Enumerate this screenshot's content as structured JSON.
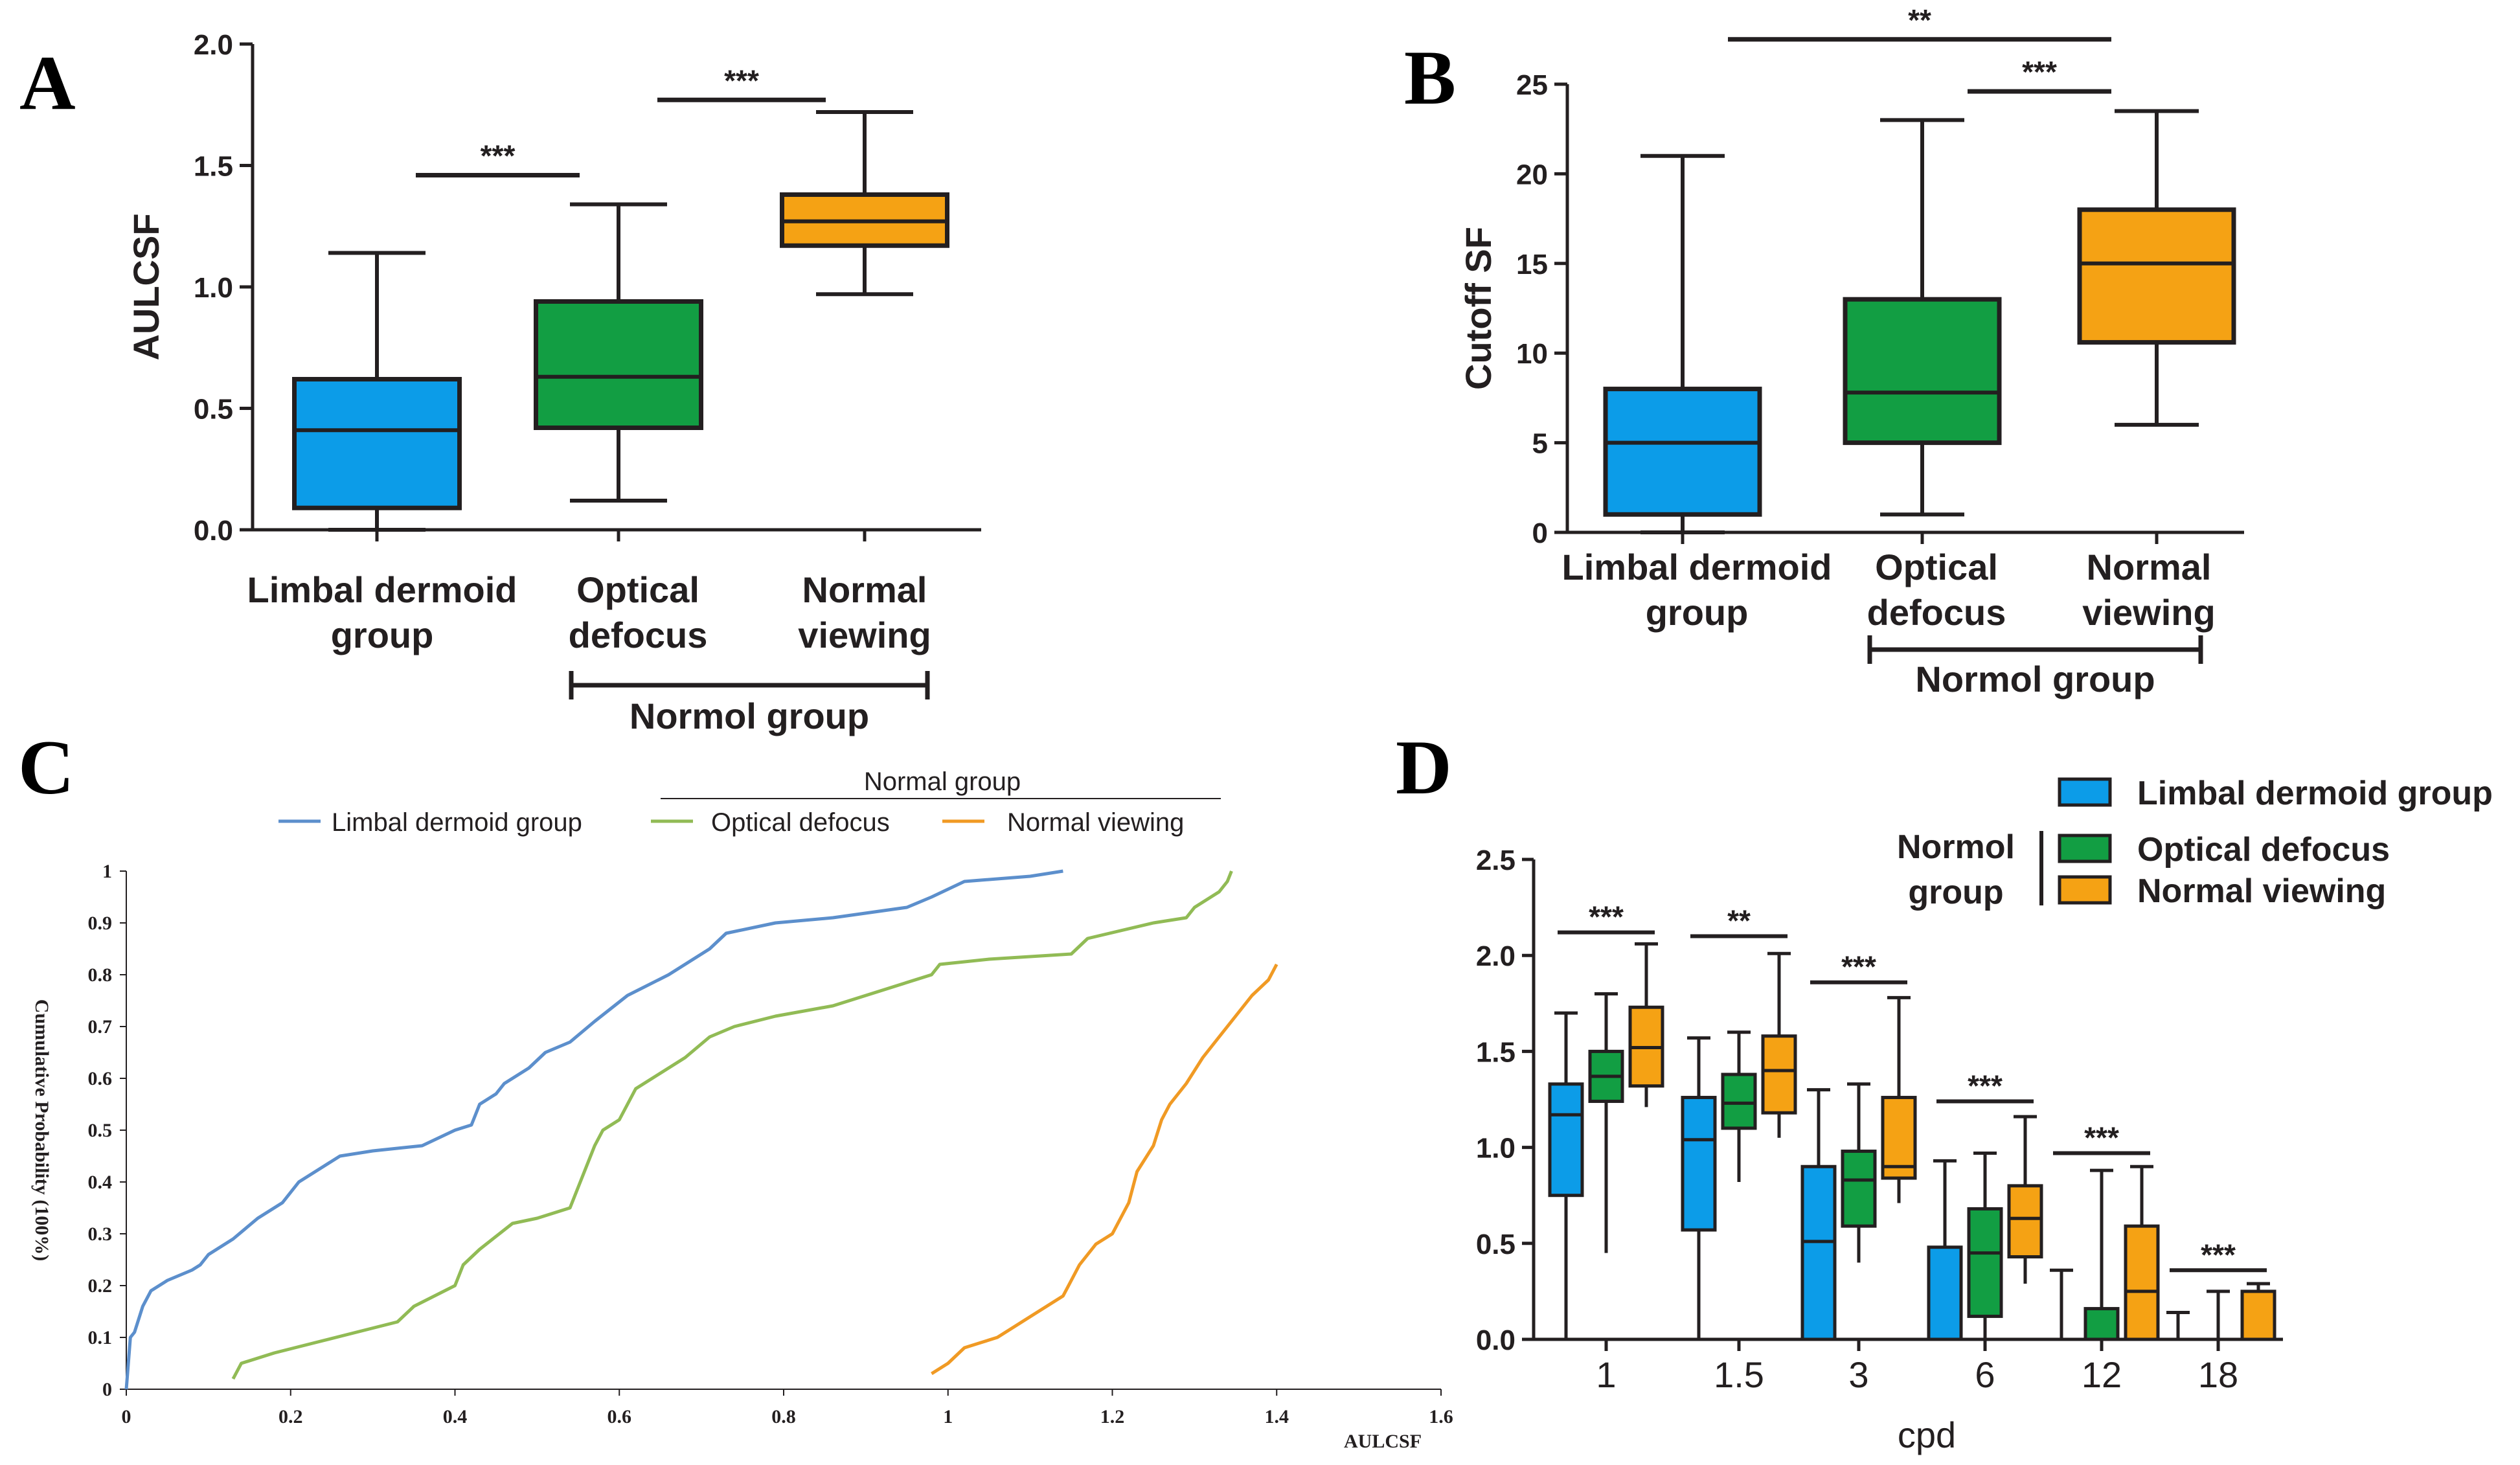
{
  "colors": {
    "blue": "#0c9ce8",
    "green": "#129e43",
    "orange": "#f5a214",
    "ink": "#231f20",
    "line_blue": "#5c8fcc",
    "line_green": "#91bb55",
    "line_orange": "#f09a24"
  },
  "panels": {
    "A": {
      "label": "A"
    },
    "B": {
      "label": "B"
    },
    "C": {
      "label": "C"
    },
    "D": {
      "label": "D"
    }
  },
  "chart_data": [
    {
      "id": "A",
      "type": "box",
      "title": "",
      "ylabel": "AULCSF",
      "ylim": [
        0,
        2.0
      ],
      "yticks": [
        "0.0",
        "0.5",
        "1.0",
        "1.5",
        "2.0"
      ],
      "categories": [
        [
          "Limbal dermoid",
          "group"
        ],
        [
          "Optical",
          "defocus"
        ],
        [
          "Normal",
          "viewing"
        ]
      ],
      "group_label": "Normol group",
      "boxes": [
        {
          "min": 0.0,
          "q1": 0.09,
          "median": 0.41,
          "q3": 0.62,
          "max": 1.14,
          "color": "blue"
        },
        {
          "min": 0.12,
          "q1": 0.42,
          "median": 0.63,
          "q3": 0.94,
          "max": 1.34,
          "color": "green"
        },
        {
          "min": 0.97,
          "q1": 1.17,
          "median": 1.27,
          "q3": 1.38,
          "max": 1.72,
          "color": "orange"
        }
      ],
      "significance": [
        {
          "from": 0,
          "to": 1,
          "y": 1.46,
          "label": "***"
        },
        {
          "from": 1,
          "to": 2,
          "y": 1.77,
          "label": "***"
        }
      ]
    },
    {
      "id": "B",
      "type": "box",
      "ylabel": "Cutoff SF",
      "ylim": [
        0,
        25
      ],
      "yticks": [
        "0",
        "5",
        "10",
        "15",
        "20",
        "25"
      ],
      "categories": [
        [
          "Limbal dermoid",
          "group"
        ],
        [
          "Optical",
          "defocus"
        ],
        [
          "Normal",
          "viewing"
        ]
      ],
      "group_label": "Normol group",
      "boxes": [
        {
          "min": 0.0,
          "q1": 1.0,
          "median": 5.0,
          "q3": 8.0,
          "max": 21.0,
          "color": "blue"
        },
        {
          "min": 1.0,
          "q1": 5.0,
          "median": 7.8,
          "q3": 13.0,
          "max": 23.0,
          "color": "green"
        },
        {
          "min": 6.0,
          "q1": 10.6,
          "median": 15.0,
          "q3": 18.0,
          "max": 23.5,
          "color": "orange"
        }
      ],
      "significance": [
        {
          "from": 0,
          "to": 2,
          "y": 27.5,
          "label": "**"
        },
        {
          "from": 1,
          "to": 2,
          "y": 24.6,
          "label": "***"
        }
      ]
    },
    {
      "id": "C",
      "type": "line",
      "xlabel": "AULCSF",
      "ylabel": "Cumulative Probability  (100%)",
      "xlim": [
        0,
        1.6
      ],
      "ylim": [
        0,
        1
      ],
      "xticks": [
        "0",
        "0.2",
        "0.4",
        "0.6",
        "0.8",
        "1",
        "1.2",
        "1.4",
        "1.6"
      ],
      "yticks": [
        "0",
        "0.1",
        "0.2",
        "0.3",
        "0.4",
        "0.5",
        "0.6",
        "0.7",
        "0.8",
        "0.9",
        "1"
      ],
      "legend_group_label": "Normal group",
      "series": [
        {
          "name": "Limbal dermoid group",
          "color": "line_blue",
          "x": [
            0,
            0.005,
            0.01,
            0.02,
            0.03,
            0.05,
            0.08,
            0.09,
            0.1,
            0.13,
            0.16,
            0.19,
            0.21,
            0.24,
            0.26,
            0.3,
            0.36,
            0.4,
            0.42,
            0.43,
            0.45,
            0.46,
            0.49,
            0.51,
            0.54,
            0.57,
            0.61,
            0.66,
            0.71,
            0.73,
            0.79,
            0.86,
            0.95,
            0.98,
            1.02,
            1.1,
            1.14
          ],
          "y": [
            0,
            0.1,
            0.11,
            0.16,
            0.19,
            0.21,
            0.23,
            0.24,
            0.26,
            0.29,
            0.33,
            0.36,
            0.4,
            0.43,
            0.45,
            0.46,
            0.47,
            0.5,
            0.51,
            0.55,
            0.57,
            0.59,
            0.62,
            0.65,
            0.67,
            0.71,
            0.76,
            0.8,
            0.85,
            0.88,
            0.9,
            0.91,
            0.93,
            0.95,
            0.98,
            0.99,
            1.0
          ]
        },
        {
          "name": "Optical defocus",
          "color": "line_green",
          "x": [
            0.13,
            0.14,
            0.18,
            0.23,
            0.28,
            0.33,
            0.35,
            0.4,
            0.41,
            0.43,
            0.47,
            0.5,
            0.54,
            0.55,
            0.57,
            0.58,
            0.6,
            0.62,
            0.64,
            0.65,
            0.68,
            0.71,
            0.74,
            0.79,
            0.86,
            0.92,
            0.98,
            0.99,
            1.05,
            1.15,
            1.17,
            1.25,
            1.29,
            1.3,
            1.33,
            1.34,
            1.345
          ],
          "y": [
            0.02,
            0.05,
            0.07,
            0.09,
            0.11,
            0.13,
            0.16,
            0.2,
            0.24,
            0.27,
            0.32,
            0.33,
            0.35,
            0.39,
            0.47,
            0.5,
            0.52,
            0.58,
            0.6,
            0.61,
            0.64,
            0.68,
            0.7,
            0.72,
            0.74,
            0.77,
            0.8,
            0.82,
            0.83,
            0.84,
            0.87,
            0.9,
            0.91,
            0.93,
            0.96,
            0.98,
            1.0
          ]
        },
        {
          "name": "Normal viewing",
          "color": "line_orange",
          "x": [
            0.98,
            1.0,
            1.02,
            1.04,
            1.06,
            1.08,
            1.1,
            1.12,
            1.14,
            1.15,
            1.16,
            1.18,
            1.2,
            1.22,
            1.23,
            1.25,
            1.26,
            1.27,
            1.29,
            1.31,
            1.33,
            1.35,
            1.37,
            1.39,
            1.4
          ],
          "y": [
            0.03,
            0.05,
            0.08,
            0.09,
            0.1,
            0.12,
            0.14,
            0.16,
            0.18,
            0.21,
            0.24,
            0.28,
            0.3,
            0.36,
            0.42,
            0.47,
            0.52,
            0.55,
            0.59,
            0.64,
            0.68,
            0.72,
            0.76,
            0.79,
            0.82
          ]
        }
      ]
    },
    {
      "id": "D",
      "type": "box",
      "xlabel": "cpd",
      "ylim": [
        0,
        2.5
      ],
      "yticks": [
        "0.0",
        "0.5",
        "1.0",
        "1.5",
        "2.0",
        "2.5"
      ],
      "categories": [
        "1",
        "1.5",
        "3",
        "6",
        "12",
        "18"
      ],
      "legend": {
        "group_label": [
          "Normol",
          "group"
        ],
        "items": [
          "Limbal dermoid group",
          "Optical defocus",
          "Normal viewing"
        ]
      },
      "series": [
        {
          "name": "Limbal dermoid group",
          "color": "blue",
          "boxes": [
            {
              "min": 0.0,
              "q1": 0.75,
              "median": 1.17,
              "q3": 1.33,
              "max": 1.7
            },
            {
              "min": 0.0,
              "q1": 0.57,
              "median": 1.04,
              "q3": 1.26,
              "max": 1.57
            },
            {
              "min": 0.0,
              "q1": 0.0,
              "median": 0.51,
              "q3": 0.9,
              "max": 1.3
            },
            {
              "min": 0.0,
              "q1": 0.0,
              "median": 0.0,
              "q3": 0.48,
              "max": 0.93
            },
            {
              "min": 0.0,
              "q1": 0.0,
              "median": 0.0,
              "q3": 0.0,
              "max": 0.36
            },
            {
              "min": 0.0,
              "q1": 0.0,
              "median": 0.0,
              "q3": 0.0,
              "max": 0.14
            }
          ]
        },
        {
          "name": "Optical defocus",
          "color": "green",
          "boxes": [
            {
              "min": 0.45,
              "q1": 1.24,
              "median": 1.37,
              "q3": 1.5,
              "max": 1.8
            },
            {
              "min": 0.82,
              "q1": 1.1,
              "median": 1.23,
              "q3": 1.38,
              "max": 1.6
            },
            {
              "min": 0.4,
              "q1": 0.59,
              "median": 0.83,
              "q3": 0.98,
              "max": 1.33
            },
            {
              "min": 0.0,
              "q1": 0.12,
              "median": 0.45,
              "q3": 0.68,
              "max": 0.97
            },
            {
              "min": 0.0,
              "q1": 0.0,
              "median": 0.0,
              "q3": 0.16,
              "max": 0.88
            },
            {
              "min": 0.0,
              "q1": 0.0,
              "median": 0.0,
              "q3": 0.0,
              "max": 0.25
            }
          ]
        },
        {
          "name": "Normal viewing",
          "color": "orange",
          "boxes": [
            {
              "min": 1.21,
              "q1": 1.32,
              "median": 1.52,
              "q3": 1.73,
              "max": 2.06
            },
            {
              "min": 1.05,
              "q1": 1.18,
              "median": 1.4,
              "q3": 1.58,
              "max": 2.01
            },
            {
              "min": 0.71,
              "q1": 0.84,
              "median": 0.9,
              "q3": 1.26,
              "max": 1.78
            },
            {
              "min": 0.29,
              "q1": 0.43,
              "median": 0.63,
              "q3": 0.8,
              "max": 1.16
            },
            {
              "min": 0.0,
              "q1": 0.0,
              "median": 0.25,
              "q3": 0.59,
              "max": 0.9
            },
            {
              "min": 0.0,
              "q1": 0.0,
              "median": 0.0,
              "q3": 0.25,
              "max": 0.29
            }
          ]
        }
      ],
      "significance": [
        {
          "cat": 0,
          "label": "***",
          "y": 2.12
        },
        {
          "cat": 1,
          "label": "**",
          "y": 2.1
        },
        {
          "cat": 2,
          "label": "***",
          "y": 1.86
        },
        {
          "cat": 3,
          "label": "***",
          "y": 1.24
        },
        {
          "cat": 4,
          "label": "***",
          "y": 0.97
        },
        {
          "cat": 5,
          "label": "***",
          "y": 0.36
        }
      ]
    }
  ]
}
